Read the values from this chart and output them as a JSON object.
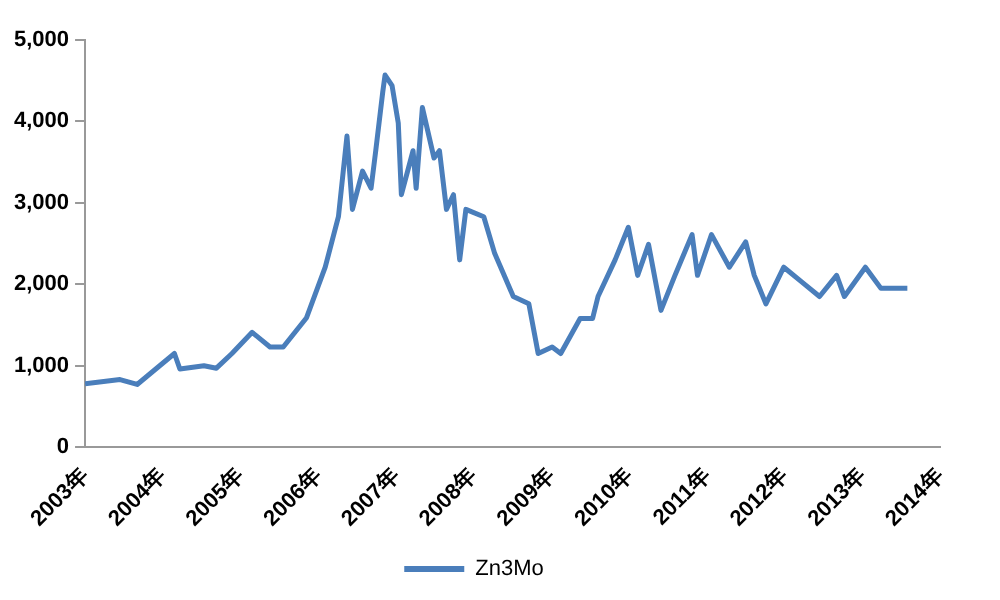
{
  "chart_data": {
    "type": "line",
    "x": [
      2003.0,
      2003.45,
      2003.67,
      2004.15,
      2004.22,
      2004.53,
      2004.69,
      2004.89,
      2005.15,
      2005.38,
      2005.55,
      2005.85,
      2006.09,
      2006.26,
      2006.37,
      2006.44,
      2006.57,
      2006.68,
      2006.74,
      2006.83,
      2006.86,
      2006.95,
      2007.03,
      2007.07,
      2007.22,
      2007.26,
      2007.34,
      2007.49,
      2007.56,
      2007.65,
      2007.74,
      2007.82,
      2007.9,
      2008.13,
      2008.27,
      2008.51,
      2008.71,
      2008.83,
      2009.01,
      2009.12,
      2009.37,
      2009.53,
      2009.6,
      2009.82,
      2009.99,
      2010.11,
      2010.25,
      2010.41,
      2010.59,
      2010.81,
      2010.88,
      2011.06,
      2011.29,
      2011.5,
      2011.61,
      2011.76,
      2011.99,
      2012.22,
      2012.45,
      2012.67,
      2012.77,
      2013.04,
      2013.24,
      2013.58
    ],
    "series": [
      {
        "name": "Zn3Mo",
        "color": "#4a7ebb",
        "values": [
          780,
          830,
          770,
          1150,
          960,
          1000,
          970,
          1150,
          1410,
          1230,
          1230,
          1590,
          2210,
          2830,
          3820,
          2920,
          3390,
          3180,
          3640,
          4360,
          4570,
          4440,
          3980,
          3100,
          3640,
          3180,
          4170,
          3550,
          3640,
          2920,
          3100,
          2300,
          2920,
          2830,
          2380,
          1850,
          1760,
          1150,
          1230,
          1150,
          1580,
          1580,
          1850,
          2300,
          2700,
          2110,
          2490,
          1680,
          2110,
          2610,
          2110,
          2610,
          2210,
          2520,
          2110,
          1760,
          2210,
          2030,
          1850,
          2110,
          1850,
          2210,
          1950,
          1950
        ]
      }
    ],
    "xlim": [
      2003,
      2014
    ],
    "xticks": [
      {
        "value": 2003,
        "label": "2003年"
      },
      {
        "value": 2004,
        "label": "2004年"
      },
      {
        "value": 2005,
        "label": "2005年"
      },
      {
        "value": 2006,
        "label": "2006年"
      },
      {
        "value": 2007,
        "label": "2007年"
      },
      {
        "value": 2008,
        "label": "2008年"
      },
      {
        "value": 2009,
        "label": "2009年"
      },
      {
        "value": 2010,
        "label": "2010年"
      },
      {
        "value": 2011,
        "label": "2011年"
      },
      {
        "value": 2012,
        "label": "2012年"
      },
      {
        "value": 2013,
        "label": "2013年"
      },
      {
        "value": 2014,
        "label": "2014年"
      }
    ],
    "ylim": [
      0,
      5000
    ],
    "yticks": [
      {
        "value": 0,
        "label": "0"
      },
      {
        "value": 1000,
        "label": "1,000"
      },
      {
        "value": 2000,
        "label": "2,000"
      },
      {
        "value": 3000,
        "label": "3,000"
      },
      {
        "value": 4000,
        "label": "4,000"
      },
      {
        "value": 5000,
        "label": "5,000"
      }
    ],
    "grid": false,
    "legend": "bottom",
    "marker": "none",
    "line_style": "solid"
  }
}
